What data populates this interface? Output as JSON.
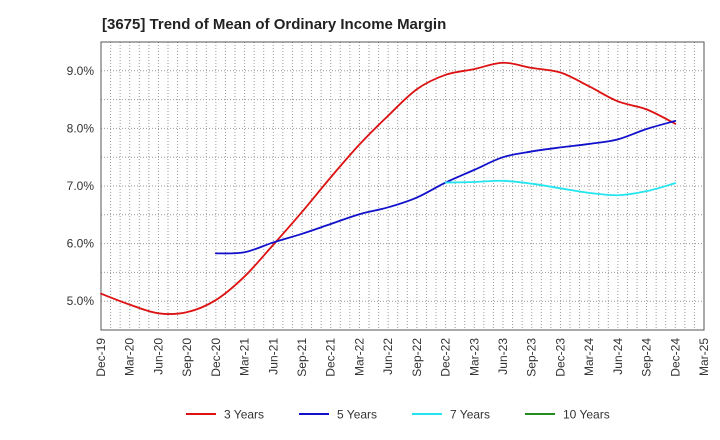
{
  "chart_data": {
    "type": "line",
    "title": "[3675]  Trend of Mean of Ordinary Income Margin",
    "xlabel": "",
    "ylabel": "",
    "x_ticks": [
      "Dec-19",
      "Mar-20",
      "Jun-20",
      "Sep-20",
      "Dec-20",
      "Mar-21",
      "Jun-21",
      "Sep-21",
      "Dec-21",
      "Mar-22",
      "Jun-22",
      "Sep-22",
      "Dec-22",
      "Mar-23",
      "Jun-23",
      "Sep-23",
      "Dec-23",
      "Mar-24",
      "Jun-24",
      "Sep-24",
      "Dec-24",
      "Mar-25"
    ],
    "y_ticks": [
      "5.0%",
      "6.0%",
      "7.0%",
      "8.0%",
      "9.0%"
    ],
    "y_tick_values": [
      5.0,
      6.0,
      7.0,
      8.0,
      9.0
    ],
    "ylim": [
      4.5,
      9.5
    ],
    "grid": true,
    "legend_position": "bottom",
    "series": [
      {
        "name": "3 Years",
        "color": "#dd1111",
        "start": "Dec-19",
        "values": [
          5.13,
          4.94,
          4.79,
          4.81,
          5.02,
          5.43,
          5.98,
          6.55,
          7.15,
          7.72,
          8.22,
          8.68,
          8.93,
          9.03,
          9.14,
          9.05,
          8.97,
          8.73,
          8.47,
          8.33,
          8.08
        ]
      },
      {
        "name": "5 Years",
        "color": "#1111cc",
        "start": "Dec-20",
        "values": [
          5.83,
          5.85,
          6.02,
          6.17,
          6.34,
          6.51,
          6.63,
          6.8,
          7.06,
          7.28,
          7.5,
          7.6,
          7.67,
          7.73,
          7.81,
          7.99,
          8.13
        ]
      },
      {
        "name": "7 Years",
        "color": "#22e5ef",
        "start": "Dec-22",
        "values": [
          7.06,
          7.07,
          7.09,
          7.04,
          6.96,
          6.88,
          6.84,
          6.91,
          7.05
        ]
      },
      {
        "name": "10 Years",
        "color": "#228b22",
        "start": "Dec-24",
        "values": []
      }
    ]
  }
}
